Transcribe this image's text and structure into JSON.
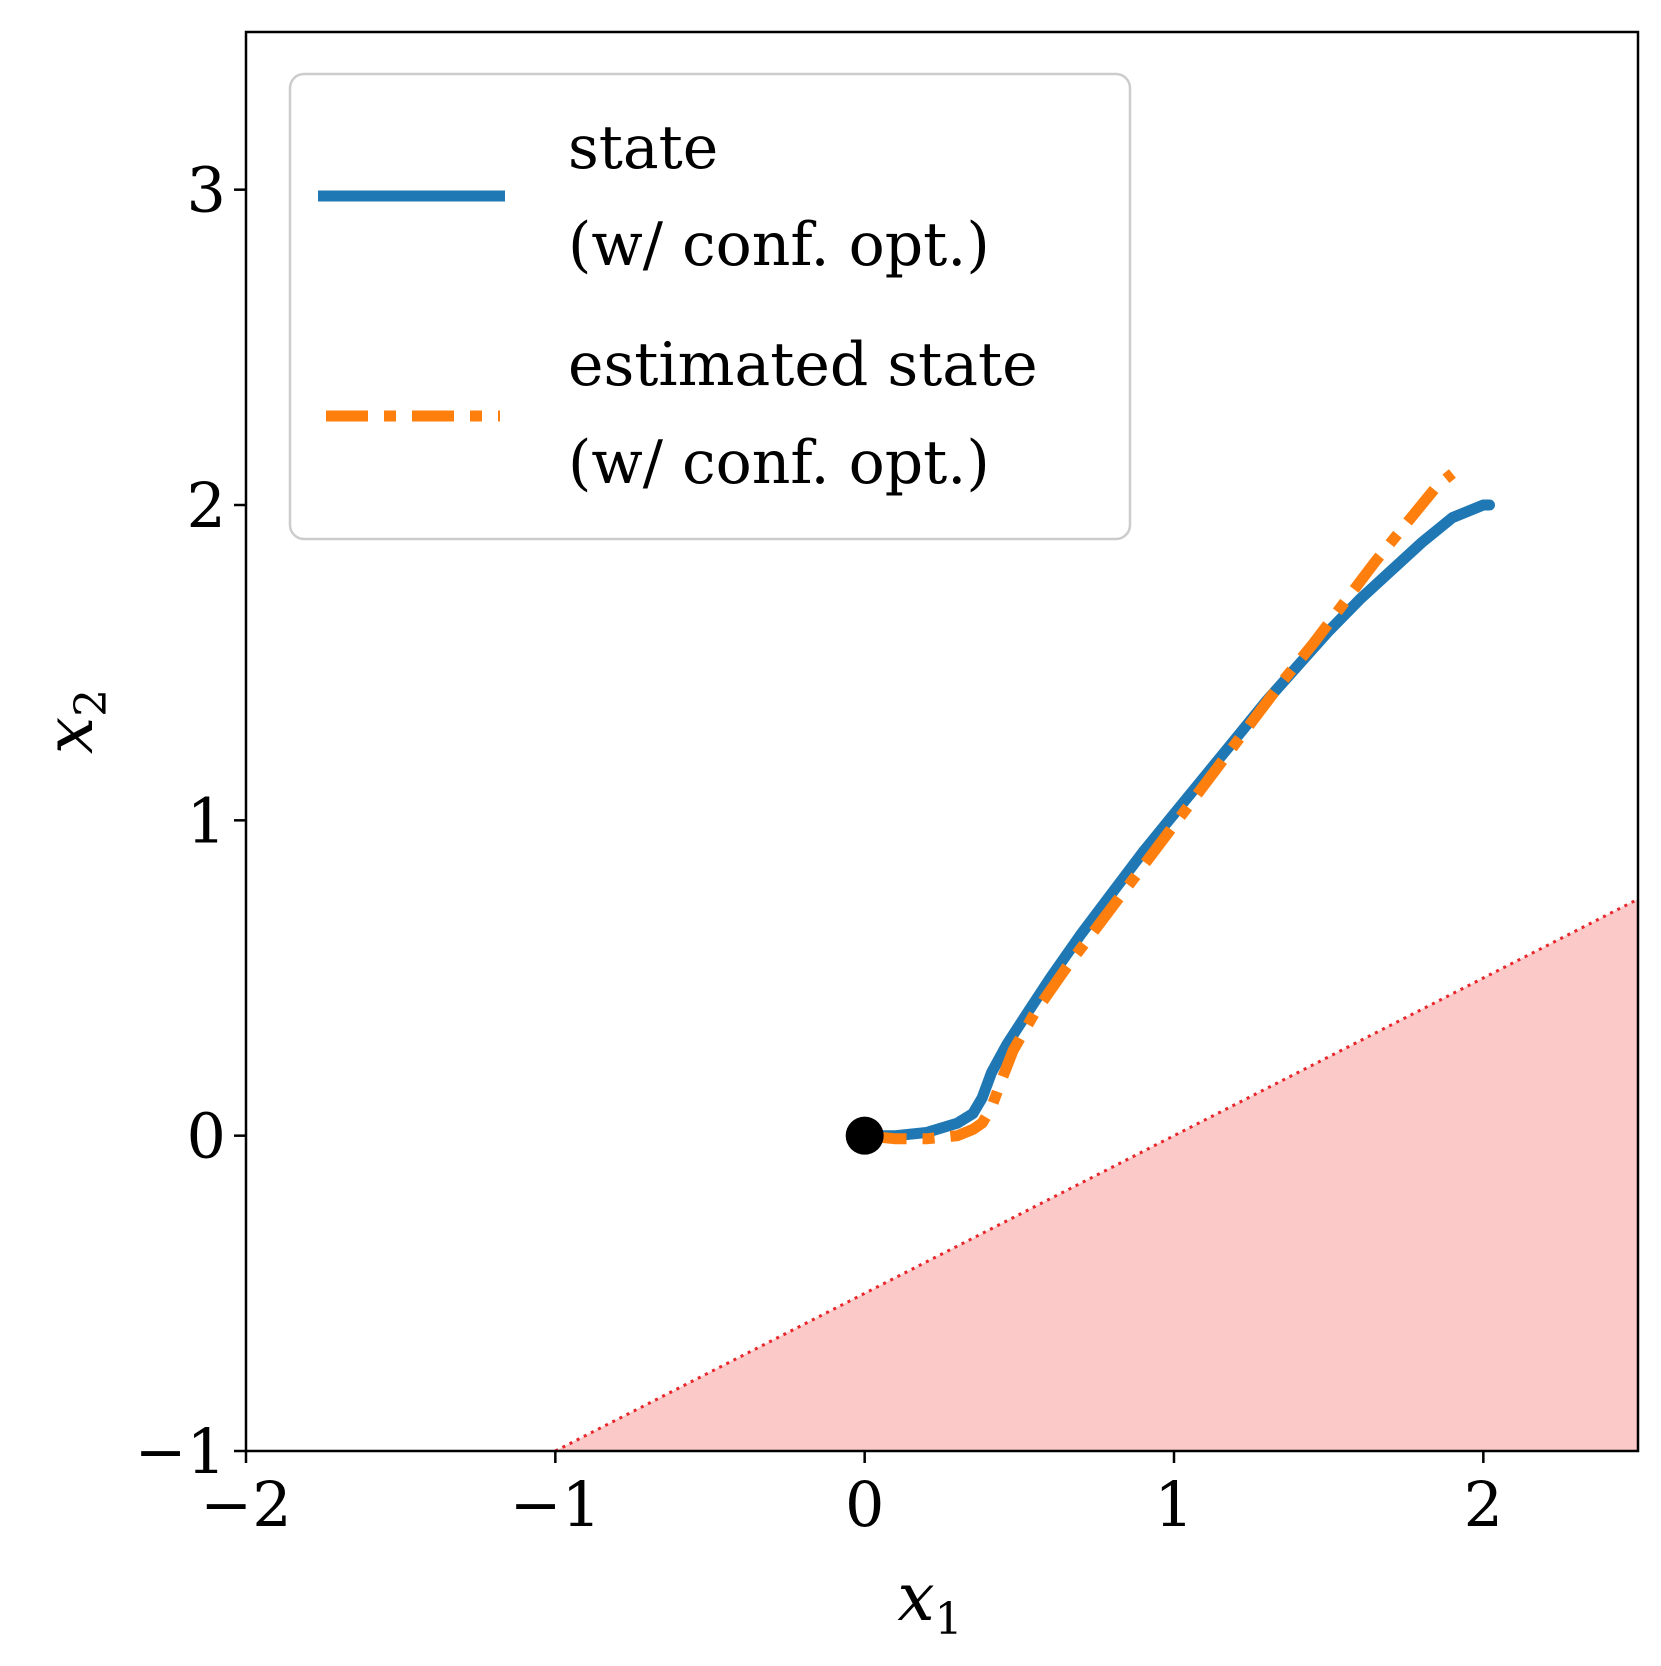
{
  "chart_data": {
    "type": "line",
    "xlabel": "x",
    "xlabel_subscript": "1",
    "ylabel": "x",
    "ylabel_subscript": "2",
    "xlim": [
      -2,
      2.5
    ],
    "ylim": [
      -1,
      3.5
    ],
    "xticks": [
      -2,
      -1,
      0,
      1,
      2
    ],
    "yticks": [
      -1,
      0,
      1,
      2,
      3
    ],
    "xtick_labels": [
      "−2",
      "−1",
      "0",
      "1",
      "2"
    ],
    "ytick_labels": [
      "−1",
      "0",
      "1",
      "2",
      "3"
    ],
    "grid": false,
    "legend_position": "top-left",
    "colors": {
      "state": "#1f77b4",
      "estimate": "#ff7f0e",
      "unsafe_fill": "#fcc9c9",
      "boundary": "#e8262a",
      "start_marker": "#000000"
    },
    "series": [
      {
        "name": "state",
        "legend_lines": [
          "state",
          "(w/ conf. opt.)"
        ],
        "style": "solid",
        "x": [
          0.0,
          0.1,
          0.2,
          0.3,
          0.35,
          0.38,
          0.41,
          0.46,
          0.52,
          0.6,
          0.7,
          0.8,
          0.9,
          1.0,
          1.1,
          1.2,
          1.3,
          1.4,
          1.5,
          1.6,
          1.7,
          1.8,
          1.9,
          2.0,
          2.02
        ],
        "y": [
          0.0,
          0.0,
          0.01,
          0.04,
          0.07,
          0.12,
          0.2,
          0.29,
          0.38,
          0.5,
          0.64,
          0.77,
          0.9,
          1.02,
          1.14,
          1.26,
          1.38,
          1.49,
          1.6,
          1.7,
          1.79,
          1.88,
          1.96,
          2.0,
          2.0
        ]
      },
      {
        "name": "estimated state",
        "legend_lines": [
          "estimated state",
          "(w/ conf. opt.)"
        ],
        "style": "dashdot",
        "x": [
          0.0,
          0.1,
          0.2,
          0.3,
          0.35,
          0.38,
          0.41,
          0.44,
          0.48,
          0.55,
          0.65,
          0.75,
          0.85,
          0.95,
          1.05,
          1.15,
          1.25,
          1.35,
          1.45,
          1.55,
          1.65,
          1.75,
          1.85,
          1.9
        ],
        "y": [
          0.0,
          -0.01,
          -0.01,
          0.0,
          0.02,
          0.04,
          0.09,
          0.17,
          0.27,
          0.39,
          0.53,
          0.66,
          0.79,
          0.92,
          1.05,
          1.18,
          1.31,
          1.44,
          1.56,
          1.69,
          1.82,
          1.94,
          2.06,
          2.1
        ]
      }
    ],
    "start_point": {
      "x": 0,
      "y": 0
    },
    "unsafe_region": {
      "boundary_line": {
        "slope": 0.5,
        "intercept": -0.5
      },
      "side": "below",
      "boundary_style": "dotted"
    }
  }
}
